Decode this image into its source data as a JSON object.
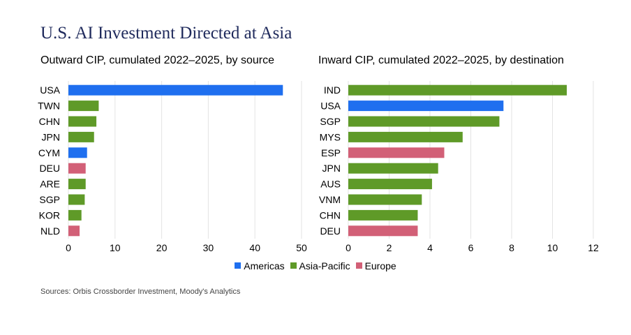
{
  "title": "U.S. AI Investment Directed at Asia",
  "source": "Sources: Orbis Crossborder Investment, Moody's Analytics",
  "colors": {
    "Americas": "#1f6fef",
    "Asia-Pacific": "#5f9a28",
    "Europe": "#d26077",
    "grid": "#e3e3e3"
  },
  "legend": [
    {
      "label": "Americas",
      "color": "#1f6fef"
    },
    {
      "label": "Asia-Pacific",
      "color": "#5f9a28"
    },
    {
      "label": "Europe",
      "color": "#d26077"
    }
  ],
  "chart_data": [
    {
      "type": "bar",
      "orientation": "horizontal",
      "title": "Outward CIP, cumulated 2022–2025, by source",
      "categories": [
        "USA",
        "TWN",
        "CHN",
        "JPN",
        "CYM",
        "DEU",
        "ARE",
        "SGP",
        "KOR",
        "NLD"
      ],
      "values": [
        46,
        6.5,
        6,
        5.5,
        4,
        3.7,
        3.7,
        3.5,
        2.8,
        2.4
      ],
      "regions": [
        "Americas",
        "Asia-Pacific",
        "Asia-Pacific",
        "Asia-Pacific",
        "Americas",
        "Europe",
        "Asia-Pacific",
        "Asia-Pacific",
        "Asia-Pacific",
        "Europe"
      ],
      "xlim": [
        0,
        50
      ],
      "xticks": [
        0,
        10,
        20,
        30,
        40,
        50
      ]
    },
    {
      "type": "bar",
      "orientation": "horizontal",
      "title": "Inward CIP, cumulated 2022–2025, by destination",
      "categories": [
        "IND",
        "USA",
        "SGP",
        "MYS",
        "ESP",
        "JPN",
        "AUS",
        "VNM",
        "CHN",
        "DEU"
      ],
      "values": [
        10.7,
        7.6,
        7.4,
        5.6,
        4.7,
        4.4,
        4.1,
        3.6,
        3.4,
        3.4
      ],
      "regions": [
        "Asia-Pacific",
        "Americas",
        "Asia-Pacific",
        "Asia-Pacific",
        "Europe",
        "Asia-Pacific",
        "Asia-Pacific",
        "Asia-Pacific",
        "Asia-Pacific",
        "Europe"
      ],
      "xlim": [
        0,
        12
      ],
      "xticks": [
        0,
        2,
        4,
        6,
        8,
        10,
        12
      ]
    }
  ]
}
